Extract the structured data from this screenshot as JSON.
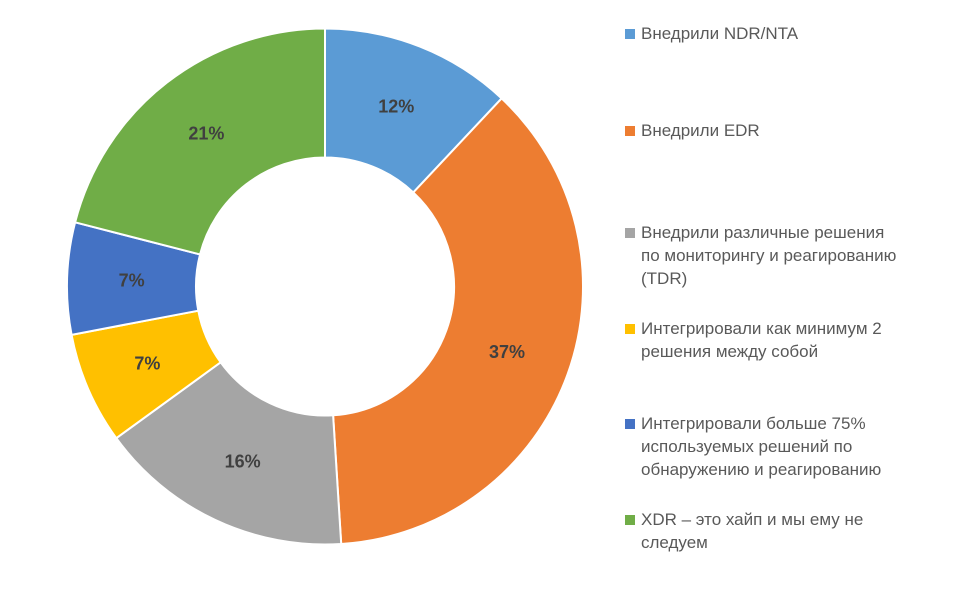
{
  "chart_data": {
    "type": "pie",
    "subtype": "donut",
    "hole_ratio": 0.5,
    "title": "",
    "legend_position": "right",
    "start_angle_deg": 0,
    "direction": "clockwise",
    "categories": [
      "Внедрили NDR/NTA",
      "Внедрили EDR",
      "Внедрили различные решения по мониторингу и реагированию (TDR)",
      "Интегрировали как минимум 2 решения между собой",
      "Интегрировали больше 75% используемых решений по обнаружению и реагированию",
      "XDR – это хайп и мы ему не следуем"
    ],
    "values": [
      12,
      37,
      16,
      7,
      7,
      21
    ],
    "data_labels": [
      "12%",
      "37%",
      "16%",
      "7%",
      "7%",
      "21%"
    ],
    "colors": [
      "#5B9BD5",
      "#ED7D31",
      "#A5A5A5",
      "#FFC000",
      "#4472C4",
      "#70AD47"
    ],
    "separator_color": "#FFFFFF"
  },
  "legend": {
    "items": [
      {
        "label": "Внедрили NDR/NTA",
        "color": "#5B9BD5"
      },
      {
        "label": "Внедрили EDR",
        "color": "#ED7D31"
      },
      {
        "label": "Внедрили различные решения\nпо мониторингу и реагированию\n(TDR)",
        "color": "#A5A5A5"
      },
      {
        "label": "Интегрировали как минимум 2\nрешения между собой",
        "color": "#FFC000"
      },
      {
        "label": "Интегрировали больше 75%\nиспользуемых решений по\nобнаружению и реагированию",
        "color": "#4472C4"
      },
      {
        "label": "XDR – это хайп и мы ему не\nследуем",
        "color": "#70AD47"
      }
    ]
  },
  "styles": {
    "background": "#FFFFFF",
    "data_label_color": "#404040",
    "legend_text_color": "#595959"
  }
}
